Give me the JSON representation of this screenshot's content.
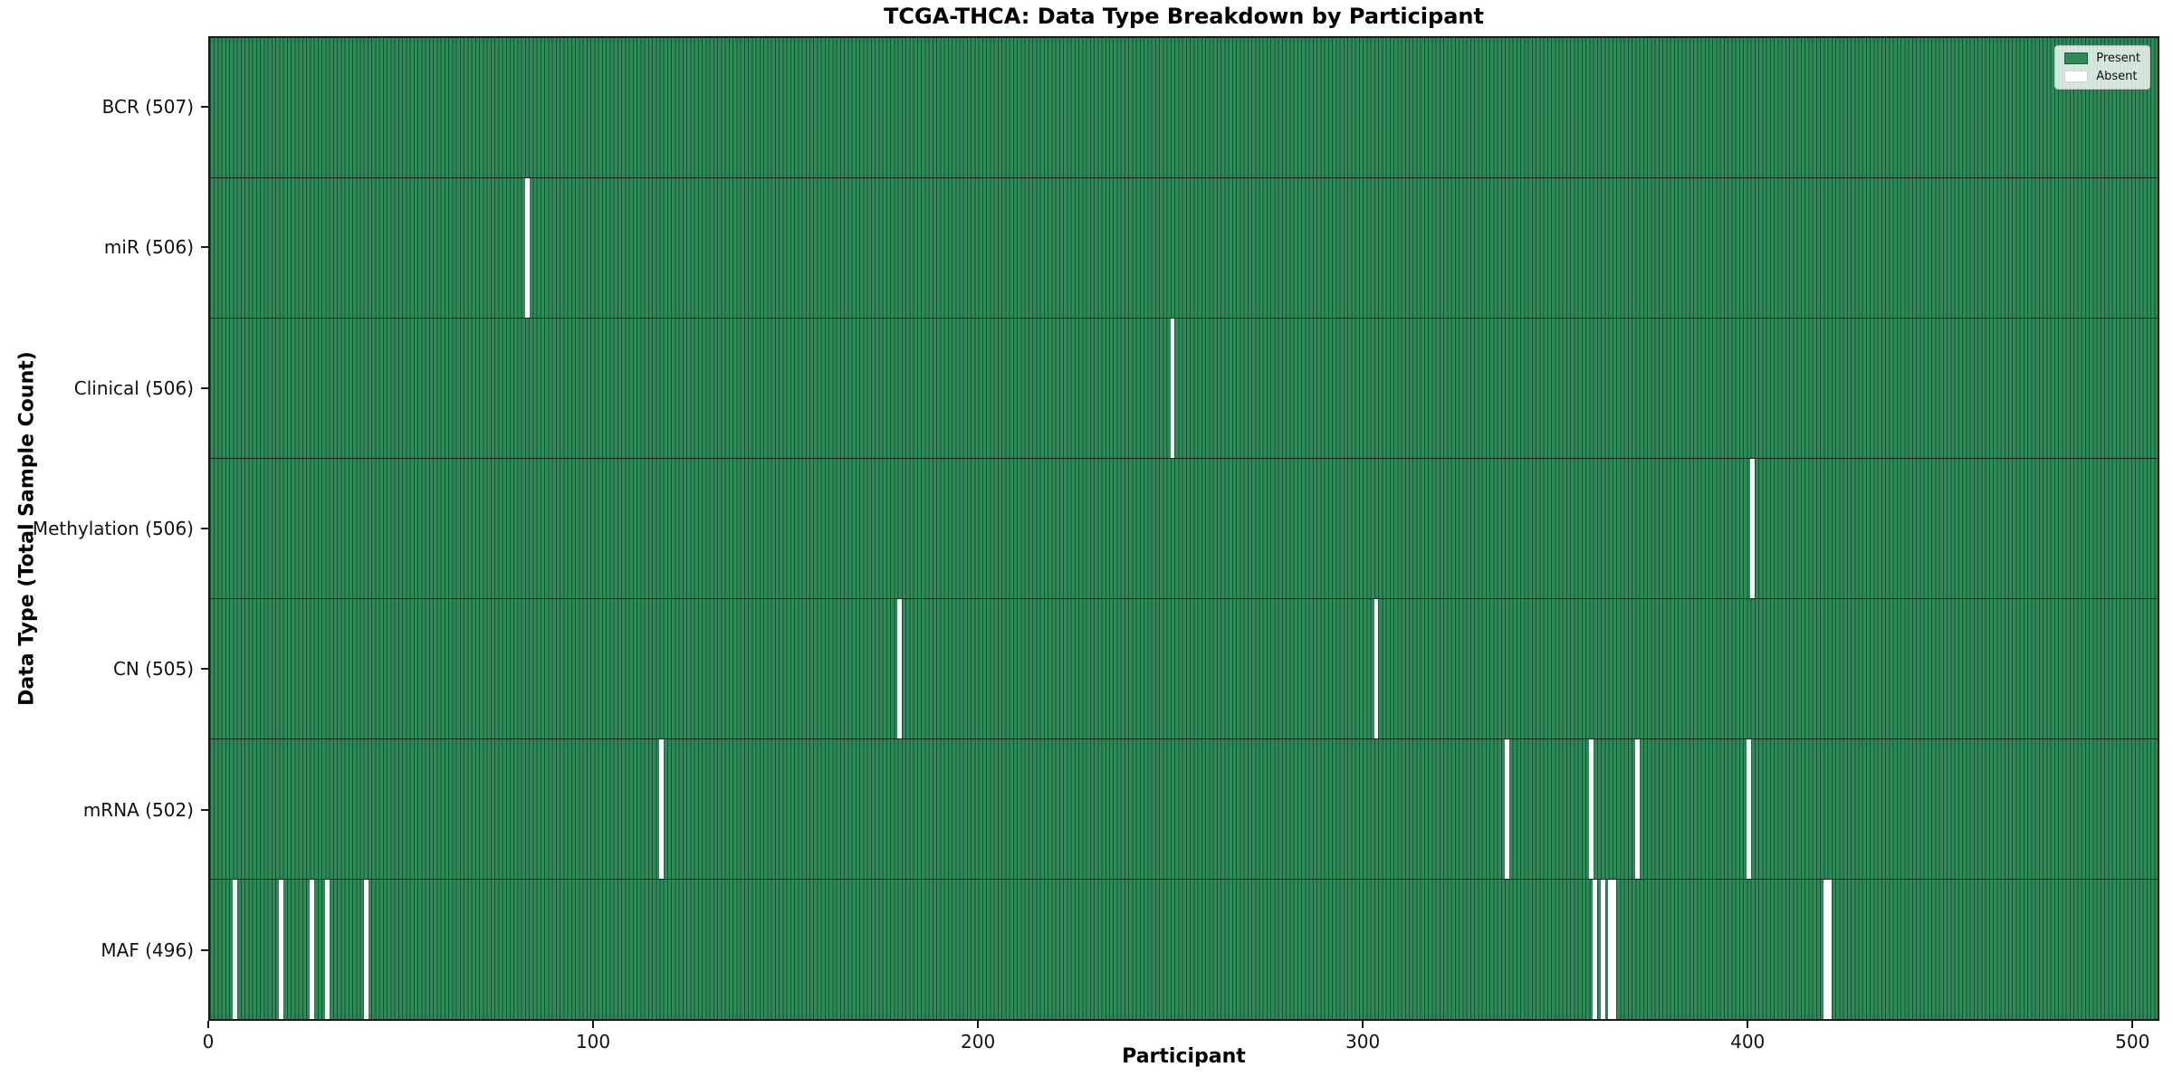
{
  "chart": {
    "colors": {
      "present": "#2e8b57",
      "absent": "#ffffff",
      "cell_edge": "rgba(5,35,22,0.55)",
      "spine": "#1a1a1a",
      "row_divider": "rgba(15,15,15,0.8)",
      "background": "#ffffff"
    }
  },
  "chart_data": {
    "type": "heatmap",
    "title": "TCGA-THCA: Data Type Breakdown by Participant",
    "xlabel": "Participant",
    "ylabel": "Data Type (Total Sample Count)",
    "xlim": [
      0,
      507
    ],
    "n_participants": 507,
    "x_ticks": [
      0,
      100,
      200,
      300,
      400,
      500
    ],
    "grid": false,
    "legend_position": "upper right",
    "legend": [
      {
        "label": "Present",
        "color": "#2e8b57"
      },
      {
        "label": "Absent",
        "color": "#ffffff"
      }
    ],
    "rows": [
      {
        "label": "BCR (507)",
        "data_type": "BCR",
        "total": 507,
        "absent_participants": []
      },
      {
        "label": "miR (506)",
        "data_type": "miR",
        "total": 506,
        "absent_participants": [
          82
        ]
      },
      {
        "label": "Clinical (506)",
        "data_type": "Clinical",
        "total": 506,
        "absent_participants": [
          250
        ]
      },
      {
        "label": "Methylation (506)",
        "data_type": "Methylation",
        "total": 506,
        "absent_participants": [
          401
        ]
      },
      {
        "label": "CN (505)",
        "data_type": "CN",
        "total": 505,
        "absent_participants": [
          179,
          303
        ]
      },
      {
        "label": "mRNA (502)",
        "data_type": "mRNA",
        "total": 502,
        "absent_participants": [
          117,
          337,
          359,
          371,
          400
        ]
      },
      {
        "label": "MAF (496)",
        "data_type": "MAF",
        "total": 496,
        "absent_participants": [
          6,
          18,
          26,
          30,
          40,
          360,
          362,
          364,
          365,
          420,
          421
        ]
      }
    ]
  }
}
